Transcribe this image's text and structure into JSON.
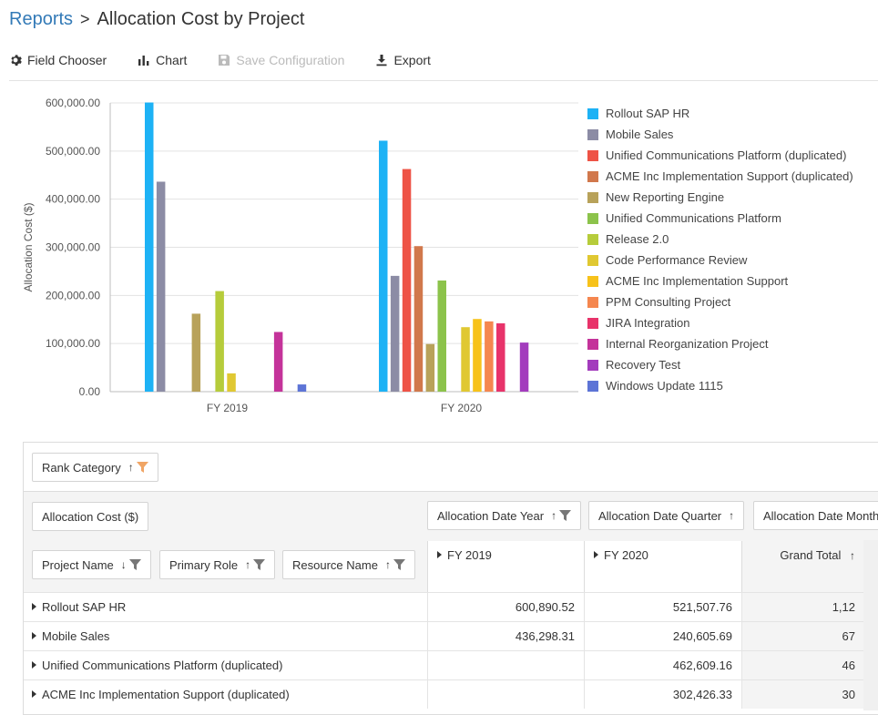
{
  "header": {
    "breadcrumb_root": "Reports",
    "separator": ">",
    "title": "Allocation Cost by Project"
  },
  "toolbar": {
    "field_chooser": "Field Chooser",
    "chart": "Chart",
    "save_configuration": "Save Configuration",
    "export": "Export"
  },
  "chart_data": {
    "type": "bar",
    "title": "",
    "xlabel": "",
    "ylabel": "Allocation Cost ($)",
    "ylim": [
      0,
      600000
    ],
    "yticks": [
      0,
      100000,
      200000,
      300000,
      400000,
      500000,
      600000
    ],
    "ytick_labels": [
      "0.00",
      "100,000.00",
      "200,000.00",
      "300,000.00",
      "400,000.00",
      "500,000.00",
      "600,000.00"
    ],
    "categories": [
      "FY 2019",
      "FY 2020"
    ],
    "legend_position": "right",
    "grid": true,
    "series": [
      {
        "name": "Rollout SAP HR",
        "color": "#1db2f5",
        "values": [
          600890.52,
          521507.76
        ]
      },
      {
        "name": "Mobile Sales",
        "color": "#8c8ca5",
        "values": [
          436298.31,
          240605.69
        ]
      },
      {
        "name": "Unified Communications Platform (duplicated)",
        "color": "#ee5346",
        "values": [
          null,
          462609.16
        ]
      },
      {
        "name": "ACME Inc Implementation Support (duplicated)",
        "color": "#d1784c",
        "values": [
          null,
          302426.33
        ]
      },
      {
        "name": "New Reporting Engine",
        "color": "#b8a25a",
        "values": [
          162000,
          99000
        ]
      },
      {
        "name": "Unified Communications Platform",
        "color": "#8cc34b",
        "values": [
          null,
          231000
        ]
      },
      {
        "name": "Release 2.0",
        "color": "#b6cc3b",
        "values": [
          209000,
          null
        ]
      },
      {
        "name": "Code Performance Review",
        "color": "#e0c832",
        "values": [
          38000,
          134000
        ]
      },
      {
        "name": "ACME Inc Implementation Support",
        "color": "#f7c21a",
        "values": [
          null,
          151000
        ]
      },
      {
        "name": "PPM Consulting Project",
        "color": "#f5874f",
        "values": [
          null,
          146000
        ]
      },
      {
        "name": "JIRA Integration",
        "color": "#e8336a",
        "values": [
          null,
          142000
        ]
      },
      {
        "name": "Internal Reorganization Project",
        "color": "#c4339a",
        "values": [
          124000,
          null
        ]
      },
      {
        "name": "Recovery Test",
        "color": "#a33cbd",
        "values": [
          null,
          102000
        ]
      },
      {
        "name": "Windows Update 1115",
        "color": "#5d74d6",
        "values": [
          15000,
          null
        ]
      }
    ]
  },
  "pivot": {
    "filter_fields": [
      {
        "label": "Rank Category",
        "arrow": "↑"
      }
    ],
    "data_field": "Allocation Cost ($)",
    "column_fields": [
      {
        "label": "Allocation Date Year",
        "arrow": "↑"
      },
      {
        "label": "Allocation Date Quarter",
        "arrow": "↑"
      },
      {
        "label": "Allocation Date Month",
        "arrow": ""
      }
    ],
    "row_fields": [
      {
        "label": "Project Name",
        "arrow": "↓"
      },
      {
        "label": "Primary Role",
        "arrow": "↑"
      },
      {
        "label": "Resource Name",
        "arrow": "↑"
      }
    ],
    "column_headers": [
      "FY 2019",
      "FY 2020"
    ],
    "grand_total_header": "Grand Total",
    "grand_total_arrow": "↑",
    "rows": [
      {
        "name": "Rollout SAP HR",
        "fy2019": "600,890.52",
        "fy2020": "521,507.76",
        "total": "1,12"
      },
      {
        "name": "Mobile Sales",
        "fy2019": "436,298.31",
        "fy2020": "240,605.69",
        "total": "67"
      },
      {
        "name": "Unified Communications Platform (duplicated)",
        "fy2019": "",
        "fy2020": "462,609.16",
        "total": "46"
      },
      {
        "name": "ACME Inc Implementation Support (duplicated)",
        "fy2019": "",
        "fy2020": "302,426.33",
        "total": "30"
      }
    ]
  }
}
